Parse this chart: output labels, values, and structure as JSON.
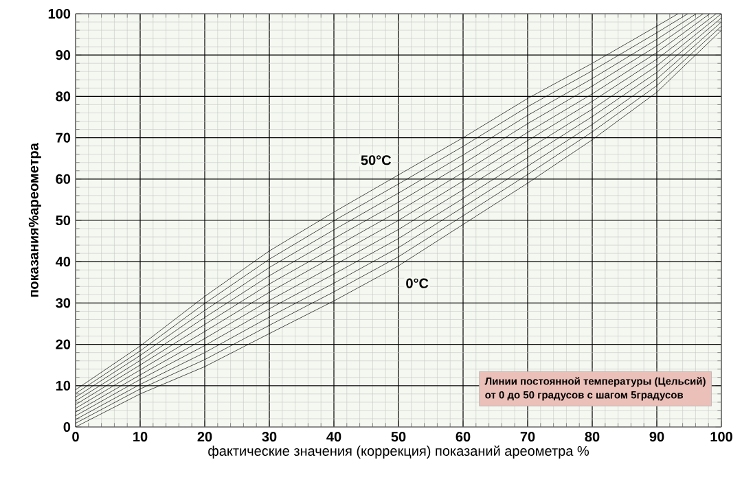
{
  "chart_data": {
    "type": "line",
    "xlabel": "фактические значения (коррекция) показаний ареометра %",
    "ylabel": "показания%ареометра",
    "xlim": [
      0,
      100
    ],
    "ylim": [
      0,
      100
    ],
    "xticks": [
      0,
      10,
      20,
      30,
      40,
      50,
      60,
      70,
      80,
      90,
      100
    ],
    "yticks": [
      0,
      10,
      20,
      30,
      40,
      50,
      60,
      70,
      80,
      90,
      100
    ],
    "grid": true,
    "legend": false,
    "marker": "none",
    "line_style": "solid",
    "series": [
      {
        "name": "0°C",
        "color": "#000000",
        "x": [
          0,
          10,
          20,
          30,
          40,
          50,
          60,
          70,
          80,
          90,
          100
        ],
        "values": [
          0,
          8,
          14.6,
          22.6,
          30.5,
          39,
          49,
          59,
          69.5,
          81,
          96
        ]
      },
      {
        "color": "#000000",
        "x": [
          0,
          10,
          20,
          30,
          40,
          50,
          60,
          70,
          80,
          90,
          100
        ],
        "values": [
          0.9,
          9.2,
          16.3,
          24.6,
          32.7,
          41.2,
          51.1,
          61.1,
          71.4,
          82.6,
          97
        ]
      },
      {
        "color": "#000000",
        "x": [
          0,
          10,
          20,
          30,
          40,
          50,
          60,
          70,
          80,
          90,
          100
        ],
        "values": [
          1.8,
          10.3,
          18,
          26.6,
          34.8,
          43.4,
          53.2,
          63.1,
          73.2,
          84.2,
          98
        ]
      },
      {
        "color": "#000000",
        "x": [
          0,
          10,
          20,
          30,
          40,
          50,
          60,
          70,
          80,
          90,
          100
        ],
        "values": [
          2.7,
          11.5,
          19.7,
          28.6,
          37,
          45.6,
          55.3,
          65.2,
          75.1,
          85.8,
          99
        ]
      },
      {
        "color": "#000000",
        "x": [
          0,
          10,
          20,
          30,
          40,
          50,
          60,
          70,
          80,
          90,
          100
        ],
        "values": [
          3.6,
          12.6,
          21.4,
          30.6,
          39.1,
          47.8,
          57.4,
          67.2,
          76.9,
          87.4,
          100
        ]
      },
      {
        "color": "#000000",
        "x": [
          0,
          10,
          20,
          30,
          40,
          50,
          60,
          70,
          80,
          90,
          99.2
        ],
        "values": [
          4.5,
          13.8,
          23.1,
          32.6,
          41.3,
          50,
          59.5,
          69.3,
          78.8,
          89,
          100
        ]
      },
      {
        "color": "#000000",
        "x": [
          0,
          10,
          20,
          30,
          40,
          50,
          60,
          70,
          80,
          90,
          98.2
        ],
        "values": [
          5.4,
          15,
          24.8,
          34.6,
          43.4,
          52.2,
          61.6,
          71.3,
          80.6,
          90.6,
          100
        ]
      },
      {
        "color": "#000000",
        "x": [
          0,
          10,
          20,
          30,
          40,
          50,
          60,
          70,
          80,
          90,
          97.2
        ],
        "values": [
          6.3,
          16.1,
          26.5,
          36.6,
          45.6,
          54.4,
          63.7,
          73.4,
          82.5,
          92.2,
          100
        ]
      },
      {
        "color": "#000000",
        "x": [
          0,
          10,
          20,
          30,
          40,
          50,
          60,
          70,
          80,
          90,
          96.1
        ],
        "values": [
          7.2,
          17.3,
          28.2,
          38.6,
          47.7,
          56.6,
          65.8,
          75.4,
          84.3,
          93.8,
          100
        ]
      },
      {
        "color": "#000000",
        "x": [
          0,
          10,
          20,
          30,
          40,
          50,
          60,
          70,
          80,
          90,
          94.8
        ],
        "values": [
          8.1,
          18.4,
          29.9,
          40.6,
          49.9,
          58.8,
          67.9,
          77.5,
          86.2,
          95.4,
          100
        ]
      },
      {
        "name": "50°C",
        "color": "#000000",
        "x": [
          0,
          10,
          20,
          30,
          40,
          50,
          60,
          70,
          80,
          90,
          93.3
        ],
        "values": [
          9,
          19.6,
          31.6,
          42.6,
          52,
          61,
          70,
          79.5,
          88,
          97,
          100
        ]
      }
    ],
    "annotations": [
      "Линии постоянной температуры (Цельсий)",
      "от 0 до 50 градусов с шагом 5градусов"
    ]
  }
}
